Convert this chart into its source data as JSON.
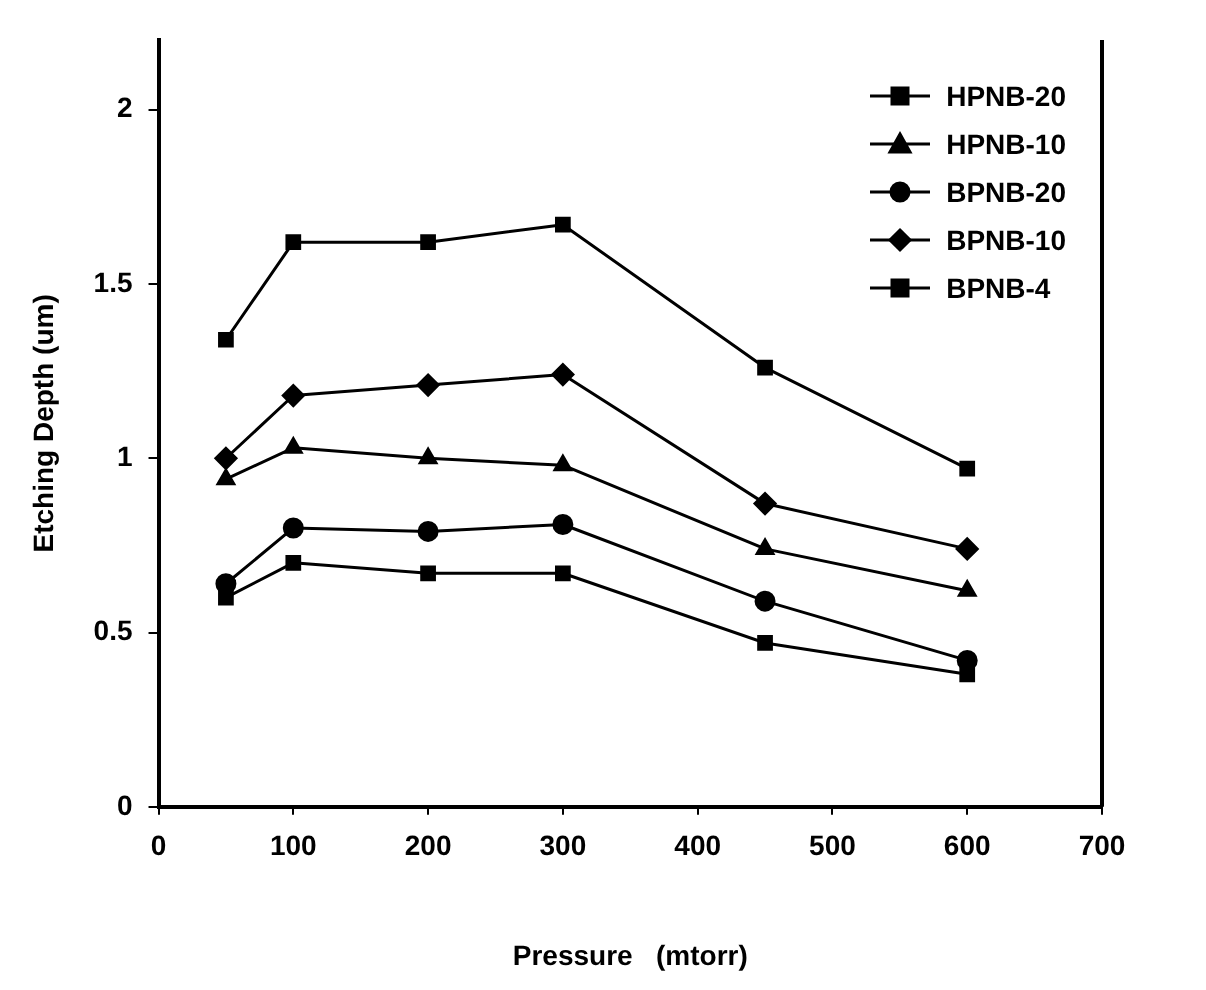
{
  "chart_data": {
    "type": "line",
    "xlabel": "Pressure   (mtorr)",
    "ylabel": "Etching Depth (um)",
    "x": [
      50,
      100,
      200,
      300,
      450,
      600
    ],
    "series": [
      {
        "name": "HPNB-20",
        "color": "#000000",
        "marker": "square",
        "values": [
          0.6,
          0.7,
          0.67,
          0.67,
          0.47,
          0.38
        ]
      },
      {
        "name": "HPNB-10",
        "color": "#000000",
        "marker": "triangle",
        "values": [
          0.94,
          1.03,
          1.0,
          0.98,
          0.74,
          0.62
        ]
      },
      {
        "name": "BPNB-20",
        "color": "#000000",
        "marker": "circle",
        "values": [
          0.64,
          0.8,
          0.79,
          0.81,
          0.59,
          0.42
        ]
      },
      {
        "name": "BPNB-10",
        "color": "#000000",
        "marker": "diamond",
        "values": [
          1.0,
          1.18,
          1.21,
          1.24,
          0.87,
          0.74
        ]
      },
      {
        "name": "BPNB-4",
        "color": "#000000",
        "marker": "square",
        "values": [
          1.34,
          1.62,
          1.62,
          1.67,
          1.26,
          0.97
        ]
      }
    ],
    "xlim": [
      0,
      700
    ],
    "xticks": [
      0,
      100,
      200,
      300,
      400,
      500,
      600,
      700
    ],
    "ylim": [
      0,
      2.2
    ],
    "yticks": [
      0,
      0.5,
      1,
      1.5,
      2
    ],
    "grid": false,
    "legend": "top right",
    "line_style": "solid"
  }
}
